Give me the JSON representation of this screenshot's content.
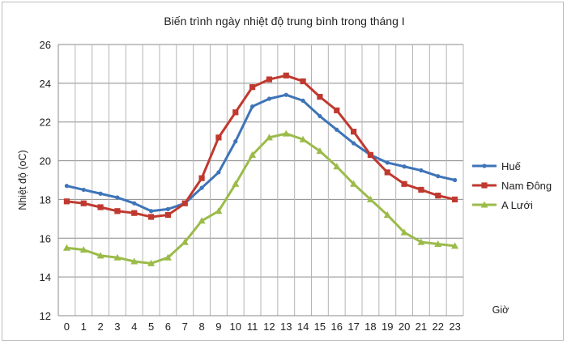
{
  "chart_data": {
    "type": "line",
    "title": "Biến trình ngày nhiệt độ trung bình trong tháng I",
    "xlabel": "Giờ",
    "ylabel": "Nhiệt độ (oC)",
    "x": [
      0,
      1,
      2,
      3,
      4,
      5,
      6,
      7,
      8,
      9,
      10,
      11,
      12,
      13,
      14,
      15,
      16,
      17,
      18,
      19,
      20,
      21,
      22,
      23
    ],
    "ylim": [
      12,
      26
    ],
    "yticks": [
      12,
      14,
      16,
      18,
      20,
      22,
      24,
      26
    ],
    "grid": true,
    "legend_position": "right",
    "series": [
      {
        "name": "Huế",
        "color": "#3e74b8",
        "marker": "circle",
        "values": [
          18.7,
          18.5,
          18.3,
          18.1,
          17.8,
          17.4,
          17.5,
          17.8,
          18.6,
          19.4,
          21.0,
          22.8,
          23.2,
          23.4,
          23.1,
          22.3,
          21.6,
          20.9,
          20.3,
          19.9,
          19.7,
          19.5,
          19.2,
          19.0
        ]
      },
      {
        "name": "Nam Đông",
        "color": "#c0392f",
        "marker": "square",
        "values": [
          17.9,
          17.8,
          17.6,
          17.4,
          17.3,
          17.1,
          17.2,
          17.8,
          19.1,
          21.2,
          22.5,
          23.8,
          24.2,
          24.4,
          24.1,
          23.3,
          22.6,
          21.5,
          20.3,
          19.4,
          18.8,
          18.5,
          18.2,
          18.0
        ]
      },
      {
        "name": "A Lưới",
        "color": "#9bbb4a",
        "marker": "triangle",
        "values": [
          15.5,
          15.4,
          15.1,
          15.0,
          14.8,
          14.7,
          15.0,
          15.8,
          16.9,
          17.4,
          18.8,
          20.3,
          21.2,
          21.4,
          21.1,
          20.5,
          19.7,
          18.8,
          18.0,
          17.2,
          16.3,
          15.8,
          15.7,
          15.6
        ]
      }
    ]
  }
}
